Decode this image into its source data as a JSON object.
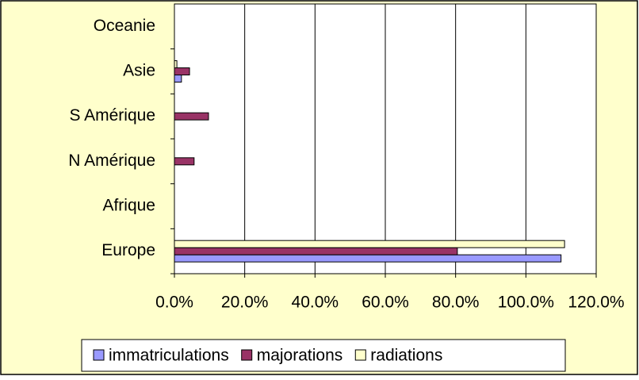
{
  "chart_data": {
    "type": "hbar",
    "categories": [
      "Europe",
      "Afrique",
      "N Amérique",
      "S Amérique",
      "Asie",
      "Oceanie"
    ],
    "series": [
      {
        "name": "immatriculations",
        "color": "#9999ff",
        "values": [
          110,
          0,
          0,
          0,
          2,
          0
        ]
      },
      {
        "name": "majorations",
        "color": "#993366",
        "values": [
          80.5,
          0,
          5.6,
          9.7,
          4.3,
          0
        ]
      },
      {
        "name": "radiations",
        "color": "#ffffcc",
        "values": [
          111,
          0,
          0,
          0,
          0.7,
          0
        ]
      }
    ],
    "xlim": [
      0,
      120
    ],
    "xticks": [
      {
        "value": 0,
        "label": "0.0%"
      },
      {
        "value": 20,
        "label": "20.0%"
      },
      {
        "value": 40,
        "label": "40.0%"
      },
      {
        "value": 60,
        "label": "60.0%"
      },
      {
        "value": 80,
        "label": "80.0%"
      },
      {
        "value": 100,
        "label": "100.0%"
      },
      {
        "value": 120,
        "label": "120.0%"
      }
    ],
    "grid": true,
    "legend": "bottom"
  }
}
